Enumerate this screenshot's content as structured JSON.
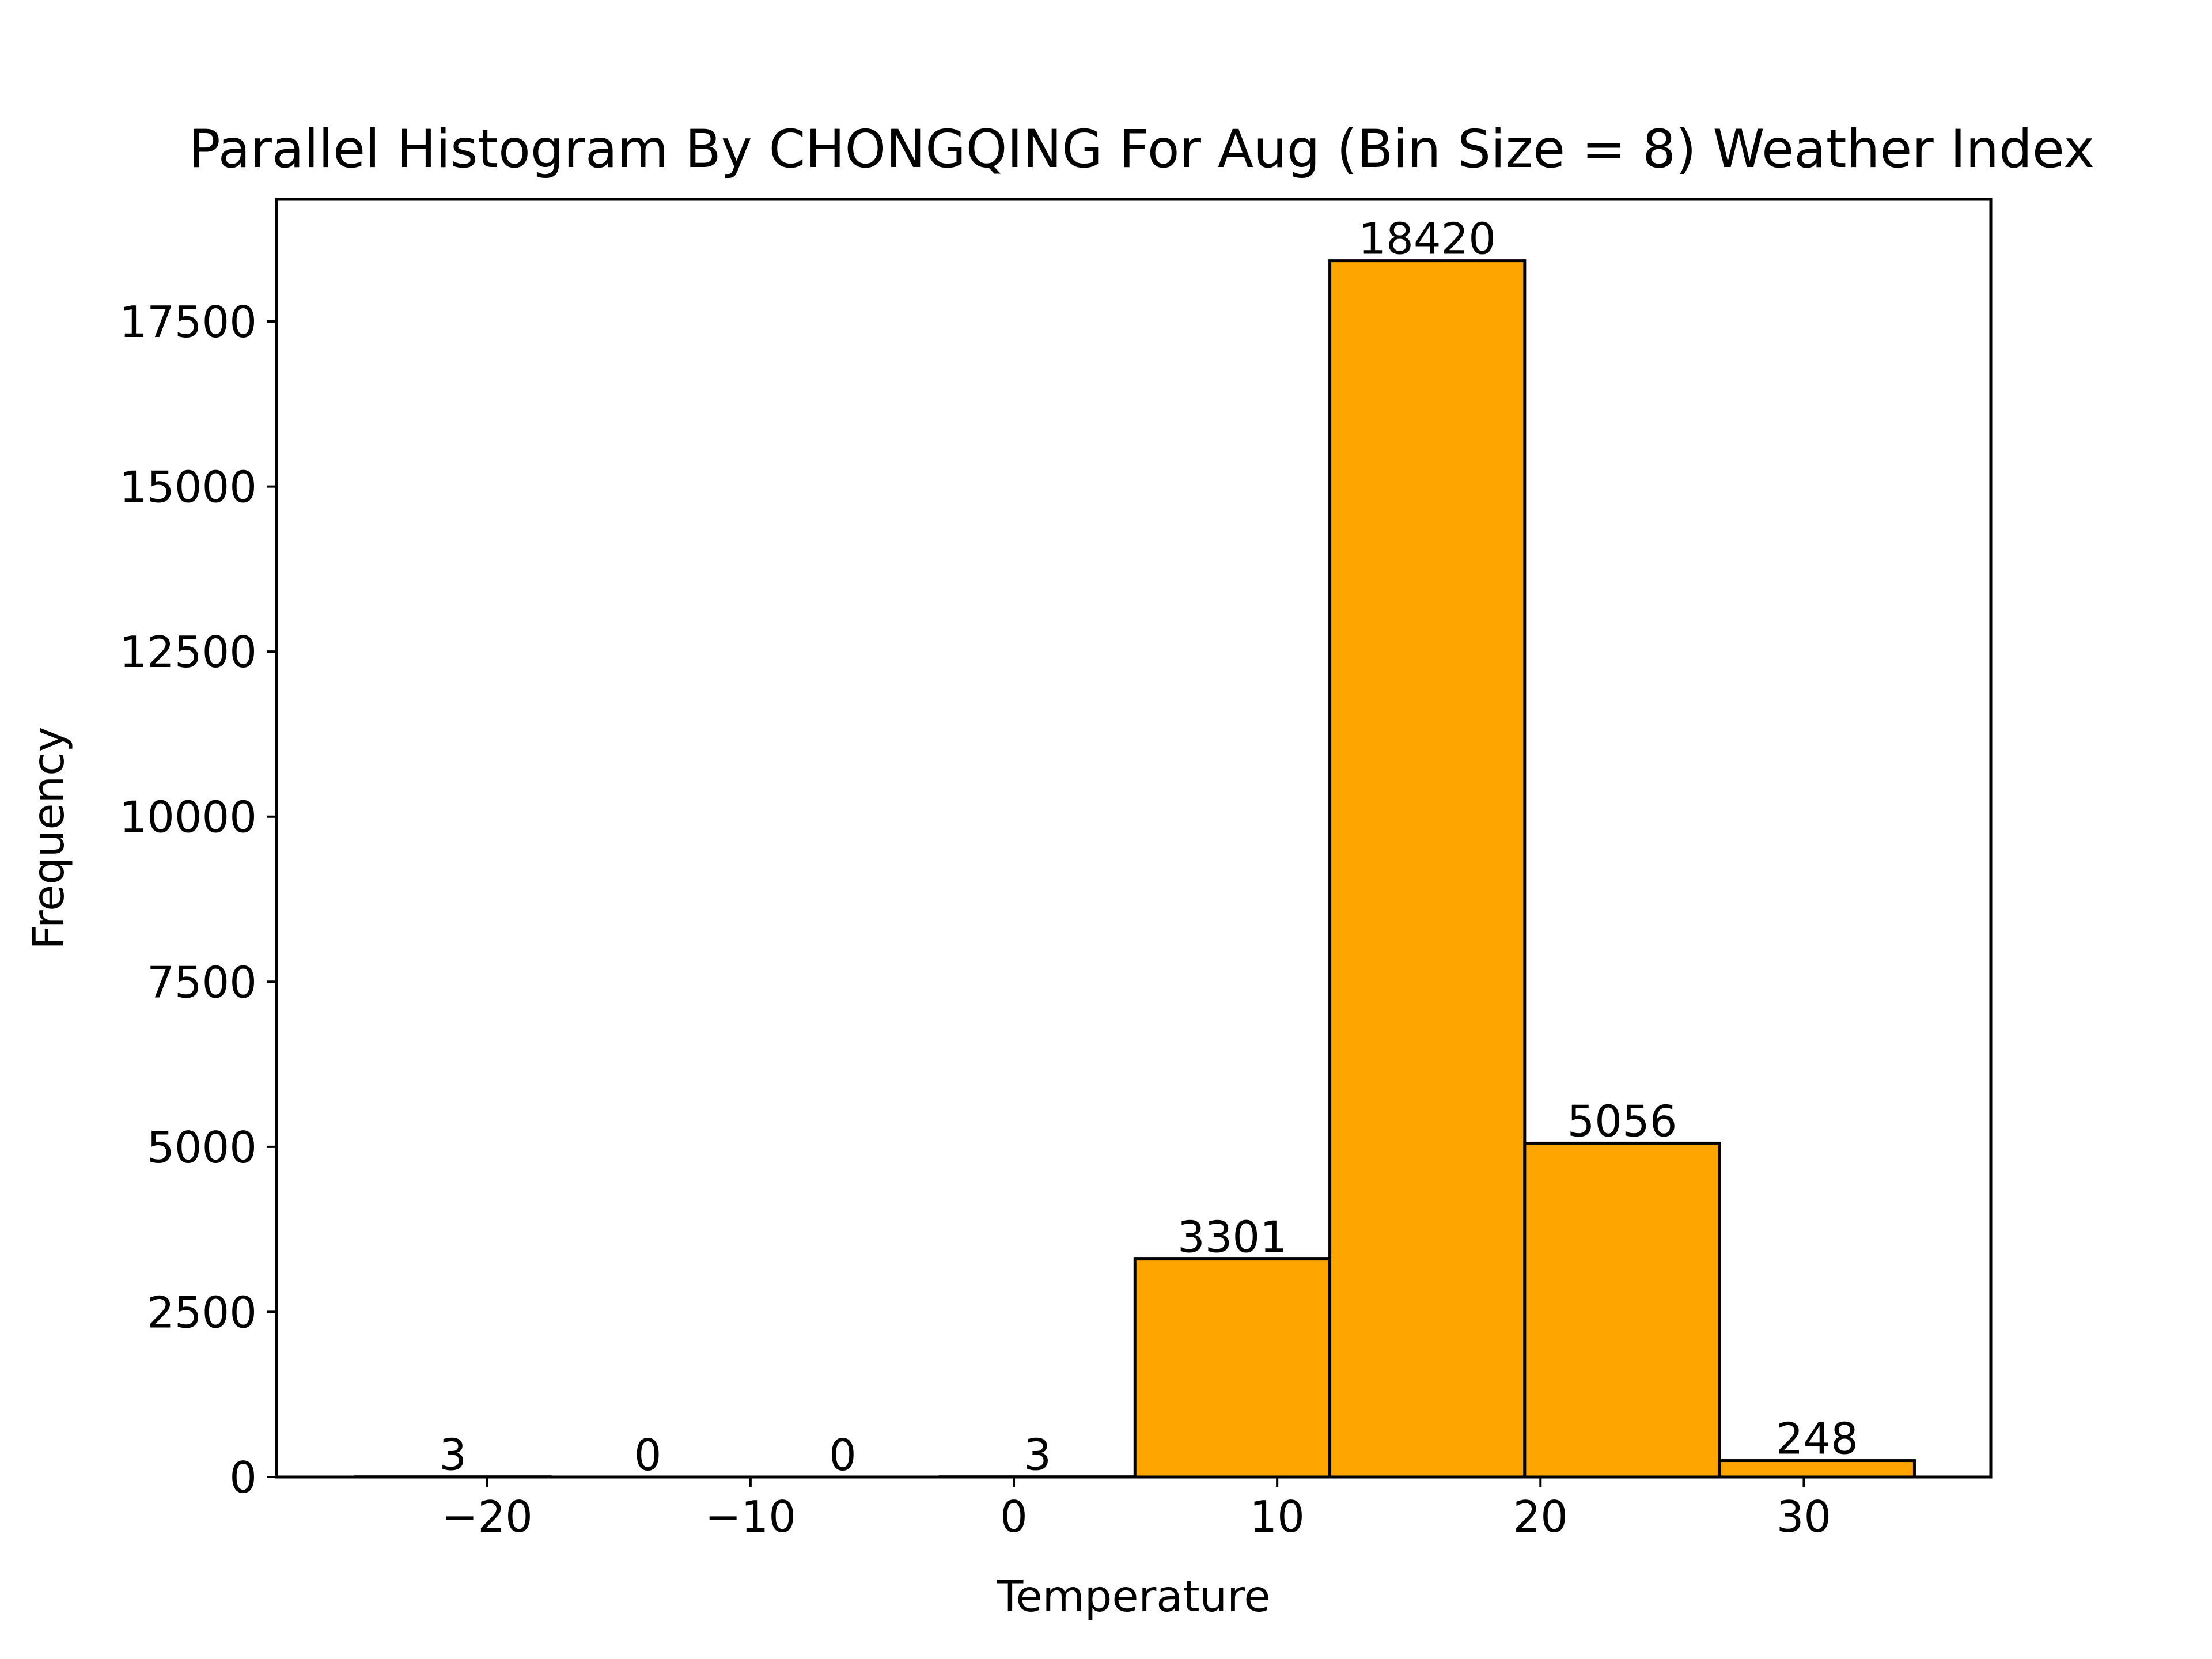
{
  "chart_data": {
    "type": "bar",
    "title": "Parallel Histogram By CHONGQING For Aug (Bin Size = 8) Weather Index",
    "xlabel": "Temperature",
    "ylabel": "Frequency",
    "bins": [
      {
        "start": -25.0,
        "end": -17.6,
        "count": 3,
        "label": "3"
      },
      {
        "start": -17.6,
        "end": -10.2,
        "count": 0,
        "label": "0"
      },
      {
        "start": -10.2,
        "end": -2.8,
        "count": 0,
        "label": "0"
      },
      {
        "start": -2.8,
        "end": 4.6,
        "count": 3,
        "label": "3"
      },
      {
        "start": 4.6,
        "end": 12.0,
        "count": 3301,
        "label": "3301"
      },
      {
        "start": 12.0,
        "end": 19.4,
        "count": 18420,
        "label": "18420"
      },
      {
        "start": 19.4,
        "end": 26.8,
        "count": 5056,
        "label": "5056"
      },
      {
        "start": 26.8,
        "end": 34.2,
        "count": 248,
        "label": "248"
      }
    ],
    "xlim": [
      -28.0,
      37.1
    ],
    "ylim": [
      0,
      19350
    ],
    "xticks": [
      {
        "value": -20,
        "label": "−20"
      },
      {
        "value": -10,
        "label": "−10"
      },
      {
        "value": 0,
        "label": "0"
      },
      {
        "value": 10,
        "label": "10"
      },
      {
        "value": 20,
        "label": "20"
      },
      {
        "value": 30,
        "label": "30"
      }
    ],
    "yticks": [
      {
        "value": 0,
        "label": "0"
      },
      {
        "value": 2500,
        "label": "2500"
      },
      {
        "value": 5000,
        "label": "5000"
      },
      {
        "value": 7500,
        "label": "7500"
      },
      {
        "value": 10000,
        "label": "10000"
      },
      {
        "value": 12500,
        "label": "12500"
      },
      {
        "value": 15000,
        "label": "15000"
      },
      {
        "value": 17500,
        "label": "17500"
      }
    ],
    "colors": {
      "bar_fill": "#FFA500",
      "bar_edge": "#000000",
      "axes": "#000000",
      "text": "#000000"
    },
    "grid": false,
    "legend": "none"
  }
}
